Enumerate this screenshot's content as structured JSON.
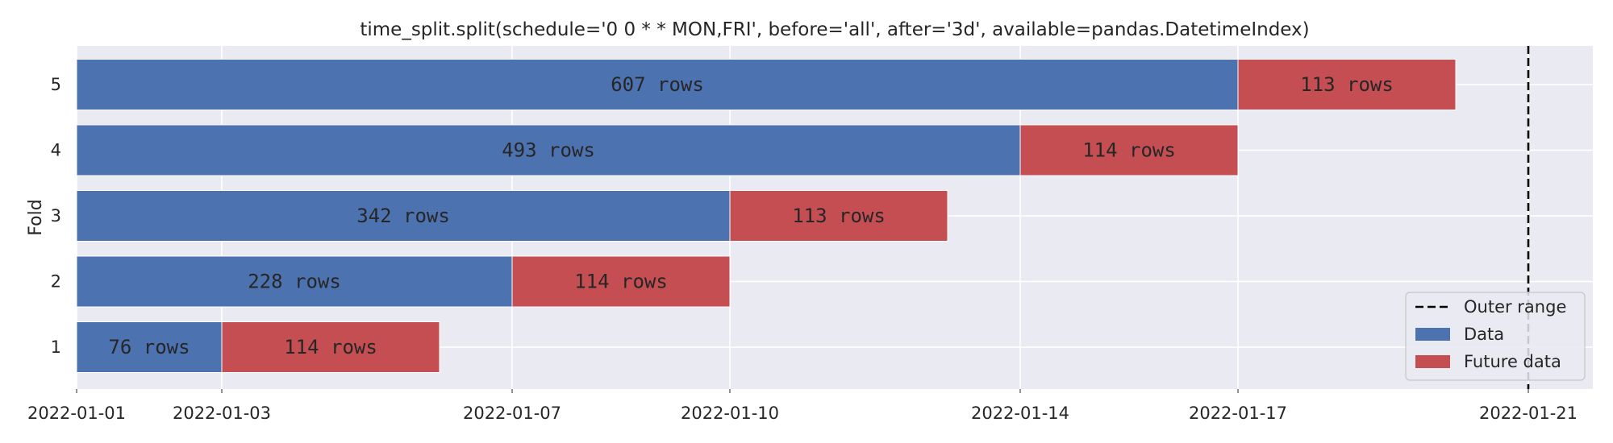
{
  "chart_data": {
    "type": "bar",
    "orientation": "horizontal-gantt",
    "title": "time_split.split(schedule='0 0 * * MON,FRI', before='all', after='3d', available=pandas.DatetimeIndex)",
    "ylabel": "Fold",
    "xlabel": "",
    "x_ticks": [
      "2022-01-01",
      "2022-01-03",
      "2022-01-07",
      "2022-01-10",
      "2022-01-14",
      "2022-01-17",
      "2022-01-21"
    ],
    "xlim": [
      "2022-01-01",
      "2022-01-21"
    ],
    "grid": true,
    "legend_position": "lower-right",
    "outer_range_end": "2022-01-21",
    "folds": [
      {
        "fold": "1",
        "data_start": "2022-01-01",
        "split": "2022-01-03",
        "future_end": "2022-01-06",
        "data_label": "76 rows",
        "future_label": "114 rows"
      },
      {
        "fold": "2",
        "data_start": "2022-01-01",
        "split": "2022-01-07",
        "future_end": "2022-01-10",
        "data_label": "228 rows",
        "future_label": "114 rows"
      },
      {
        "fold": "3",
        "data_start": "2022-01-01",
        "split": "2022-01-10",
        "future_end": "2022-01-13",
        "data_label": "342 rows",
        "future_label": "113 rows"
      },
      {
        "fold": "4",
        "data_start": "2022-01-01",
        "split": "2022-01-14",
        "future_end": "2022-01-17",
        "data_label": "493 rows",
        "future_label": "114 rows"
      },
      {
        "fold": "5",
        "data_start": "2022-01-01",
        "split": "2022-01-17",
        "future_end": "2022-01-20",
        "data_label": "607 rows",
        "future_label": "113 rows"
      }
    ],
    "legend": [
      {
        "key": "outer",
        "label": "Outer range",
        "style": "dashed-line",
        "color": "#000000"
      },
      {
        "key": "data",
        "label": "Data",
        "style": "patch",
        "color": "#4c72b0"
      },
      {
        "key": "future",
        "label": "Future data",
        "style": "patch",
        "color": "#c44e52"
      }
    ],
    "colors": {
      "background": "#eaeaf2",
      "grid": "#ffffff",
      "data": "#4c72b0",
      "future": "#c44e52"
    }
  }
}
